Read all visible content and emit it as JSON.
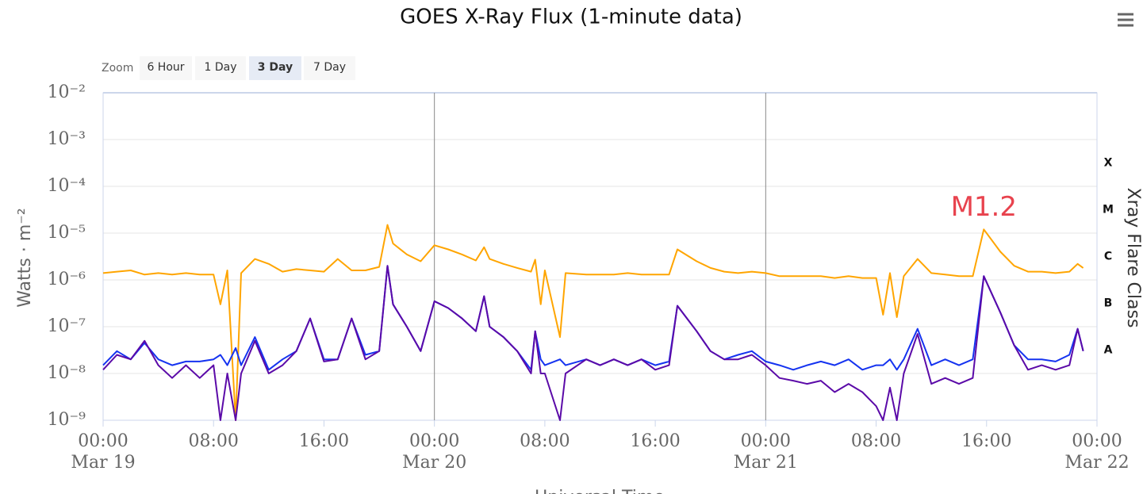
{
  "chart_data": {
    "type": "line",
    "title": "GOES X-Ray Flux (1-minute data)",
    "ylabel": "Watts · m⁻²",
    "y2label": "Xray Flare Class",
    "xlabel": "Universal Time",
    "log_scale": true,
    "grid": true,
    "zoom": {
      "label": "Zoom",
      "buttons": [
        "6 Hour",
        "1 Day",
        "3 Day",
        "7 Day"
      ],
      "selected": 2
    },
    "xlim": [
      0,
      72
    ],
    "xticks": [
      {
        "value": 0,
        "label": "00:00"
      },
      {
        "value": 8,
        "label": "08:00"
      },
      {
        "value": 16,
        "label": "16:00"
      },
      {
        "value": 24,
        "label": "00:00"
      },
      {
        "value": 32,
        "label": "08:00"
      },
      {
        "value": 40,
        "label": "16:00"
      },
      {
        "value": 48,
        "label": "00:00"
      },
      {
        "value": 56,
        "label": "08:00"
      },
      {
        "value": 64,
        "label": "16:00"
      },
      {
        "value": 72,
        "label": "00:00"
      }
    ],
    "xtick_dates": [
      {
        "value": 0,
        "label": "Mar 19"
      },
      {
        "value": 24,
        "label": "Mar 20"
      },
      {
        "value": 48,
        "label": "Mar 21"
      },
      {
        "value": 72,
        "label": "Mar 22"
      }
    ],
    "plot_lines": [
      24,
      48
    ],
    "ylim": [
      1e-09,
      0.01
    ],
    "yticks": [
      {
        "value": 0.01,
        "label": "10⁻²"
      },
      {
        "value": 0.001,
        "label": "10⁻³"
      },
      {
        "value": 0.0001,
        "label": "10⁻⁴"
      },
      {
        "value": 1e-05,
        "label": "10⁻⁵"
      },
      {
        "value": 1e-06,
        "label": "10⁻⁶"
      },
      {
        "value": 1e-07,
        "label": "10⁻⁷"
      },
      {
        "value": 1e-08,
        "label": "10⁻⁸"
      },
      {
        "value": 1e-09,
        "label": "10⁻⁹"
      }
    ],
    "y2lim": [
      1e-09,
      0.01
    ],
    "y2ticks": [
      {
        "value": 0.000316,
        "label": "X"
      },
      {
        "value": 3.16e-05,
        "label": "M"
      },
      {
        "value": 3.16e-06,
        "label": "C"
      },
      {
        "value": 3.16e-07,
        "label": "B"
      },
      {
        "value": 3.16e-08,
        "label": "A"
      }
    ],
    "annotation": {
      "text": "M1.2",
      "x": 63.8,
      "y": 1.2e-05,
      "color": "#e8434e"
    },
    "x": [
      0,
      1,
      2,
      3,
      4,
      5,
      6,
      7,
      8,
      8.5,
      9,
      9.6,
      10,
      11,
      12,
      13,
      14,
      15,
      16,
      17,
      18,
      19,
      20,
      20.6,
      21,
      22,
      23,
      24,
      25,
      26,
      27,
      27.6,
      28,
      29,
      30,
      31,
      31.3,
      31.7,
      32,
      33.1,
      33.5,
      35,
      36,
      37,
      38,
      39,
      40,
      41,
      41.6,
      43,
      44,
      45,
      46,
      47,
      48,
      49,
      50,
      51,
      52,
      53,
      54,
      55,
      56,
      56.5,
      57,
      57.5,
      58,
      59,
      60,
      61,
      62,
      63,
      63.8,
      65,
      66,
      67,
      68,
      69,
      70,
      70.6,
      71
    ],
    "series": [
      {
        "color": "#ffa500",
        "values": [
          1.4e-06,
          1.5e-06,
          1.6e-06,
          1.3e-06,
          1.4e-06,
          1.3e-06,
          1.4e-06,
          1.3e-06,
          1.3e-06,
          3e-07,
          1.6e-06,
          1e-09,
          1.4e-06,
          2.8e-06,
          2.2e-06,
          1.5e-06,
          1.7e-06,
          1.6e-06,
          1.5e-06,
          2.8e-06,
          1.6e-06,
          1.6e-06,
          1.9e-06,
          1.5e-05,
          6e-06,
          3.5e-06,
          2.5e-06,
          5.5e-06,
          4.5e-06,
          3.5e-06,
          2.6e-06,
          5e-06,
          2.8e-06,
          2.2e-06,
          1.8e-06,
          1.5e-06,
          2.7e-06,
          3e-07,
          1.6e-06,
          6e-08,
          1.4e-06,
          1.3e-06,
          1.3e-06,
          1.3e-06,
          1.4e-06,
          1.3e-06,
          1.3e-06,
          1.3e-06,
          4.5e-06,
          2.5e-06,
          1.8e-06,
          1.5e-06,
          1.4e-06,
          1.5e-06,
          1.4e-06,
          1.2e-06,
          1.2e-06,
          1.2e-06,
          1.2e-06,
          1.1e-06,
          1.2e-06,
          1.1e-06,
          1.1e-06,
          1.8e-07,
          1.4e-06,
          1.6e-07,
          1.2e-06,
          2.8e-06,
          1.4e-06,
          1.3e-06,
          1.2e-06,
          1.2e-06,
          1.2e-05,
          4e-06,
          2e-06,
          1.5e-06,
          1.5e-06,
          1.4e-06,
          1.5e-06,
          2.2e-06,
          1.8e-06
        ]
      },
      {
        "color": "#1533f0",
        "values": [
          1.5e-08,
          3e-08,
          2e-08,
          4.5e-08,
          2e-08,
          1.5e-08,
          1.8e-08,
          1.8e-08,
          2e-08,
          2.5e-08,
          1.5e-08,
          3.5e-08,
          1.5e-08,
          6e-08,
          1.2e-08,
          2e-08,
          3e-08,
          1.5e-07,
          2e-08,
          2e-08,
          1.5e-07,
          2.5e-08,
          3e-08,
          2e-06,
          3e-07,
          1e-07,
          3e-08,
          3.5e-07,
          2.5e-07,
          1.5e-07,
          8e-08,
          4.5e-07,
          1e-07,
          6e-08,
          3e-08,
          1.2e-08,
          8e-08,
          2e-08,
          1.5e-08,
          2e-08,
          1.5e-08,
          2e-08,
          1.5e-08,
          2e-08,
          1.5e-08,
          2e-08,
          1.5e-08,
          1.8e-08,
          2.8e-07,
          8e-08,
          3e-08,
          2e-08,
          2.5e-08,
          3e-08,
          1.8e-08,
          1.5e-08,
          1.2e-08,
          1.5e-08,
          1.8e-08,
          1.5e-08,
          2e-08,
          1.2e-08,
          1.5e-08,
          1.5e-08,
          2e-08,
          1.2e-08,
          2e-08,
          9e-08,
          1.5e-08,
          2e-08,
          1.5e-08,
          2e-08,
          1.2e-06,
          2e-07,
          4e-08,
          2e-08,
          2e-08,
          1.8e-08,
          2.5e-08,
          9e-08,
          3e-08
        ]
      },
      {
        "color": "#5b0aa8",
        "values": [
          1.2e-08,
          2.5e-08,
          2e-08,
          5e-08,
          1.5e-08,
          8e-09,
          1.5e-08,
          8e-09,
          1.5e-08,
          1e-09,
          1e-08,
          1e-09,
          1e-08,
          5e-08,
          1e-08,
          1.5e-08,
          3e-08,
          1.5e-07,
          1.8e-08,
          2e-08,
          1.5e-07,
          2e-08,
          3e-08,
          2e-06,
          3e-07,
          1e-07,
          3e-08,
          3.5e-07,
          2.5e-07,
          1.5e-07,
          8e-08,
          4.5e-07,
          1e-07,
          6e-08,
          3e-08,
          1e-08,
          8e-08,
          1e-08,
          1e-08,
          1e-09,
          1e-08,
          2e-08,
          1.5e-08,
          2e-08,
          1.5e-08,
          2e-08,
          1.2e-08,
          1.5e-08,
          2.8e-07,
          8e-08,
          3e-08,
          2e-08,
          2e-08,
          2.5e-08,
          1.5e-08,
          8e-09,
          7e-09,
          6e-09,
          7e-09,
          4e-09,
          6e-09,
          4e-09,
          2e-09,
          1e-09,
          5e-09,
          1e-09,
          1e-08,
          7e-08,
          6e-09,
          8e-09,
          6e-09,
          8e-09,
          1.2e-06,
          2e-07,
          4e-08,
          1.2e-08,
          1.5e-08,
          1.2e-08,
          1.5e-08,
          9e-08,
          3e-08
        ]
      }
    ]
  }
}
